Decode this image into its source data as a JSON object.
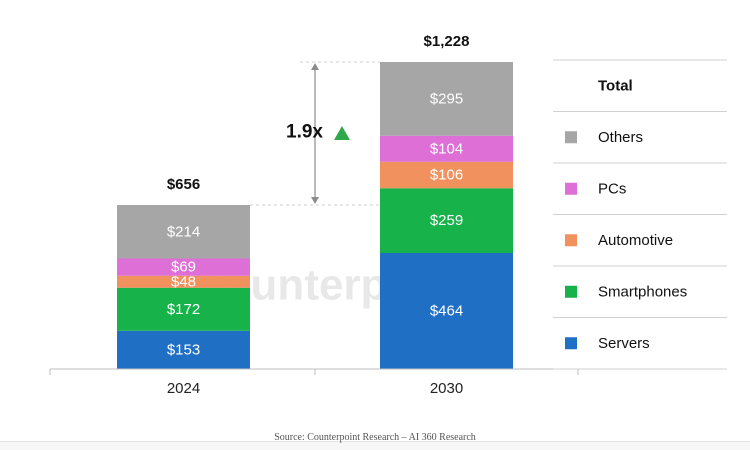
{
  "chart_data": {
    "type": "bar",
    "stacked": true,
    "categories": [
      "2024",
      "2030"
    ],
    "totals": [
      "$656",
      "$1,228"
    ],
    "series": [
      {
        "name": "Servers",
        "color": "#1f6fc5",
        "values": [
          153,
          464
        ],
        "labels": [
          "$153",
          "$464"
        ]
      },
      {
        "name": "Smartphones",
        "color": "#17b24a",
        "values": [
          172,
          259
        ],
        "labels": [
          "$172",
          "$259"
        ]
      },
      {
        "name": "Automotive",
        "color": "#f0915e",
        "values": [
          48,
          106
        ],
        "labels": [
          "$48",
          "$106"
        ]
      },
      {
        "name": "PCs",
        "color": "#dd6fd6",
        "values": [
          69,
          104
        ],
        "labels": [
          "$69",
          "$104"
        ]
      },
      {
        "name": "Others",
        "color": "#a6a6a6",
        "values": [
          214,
          295
        ],
        "labels": [
          "$214",
          "$295"
        ]
      }
    ],
    "legend_title": "Total",
    "legend_order": [
      "Others",
      "PCs",
      "Automotive",
      "Smartphones",
      "Servers"
    ],
    "legend_position": "right",
    "growth_annotation": "1.9x",
    "growth_arrow_color": "#2ea84a",
    "grid": false
  },
  "watermark": "Counterpoint",
  "source": "Source: Counterpoint Research – AI 360 Research"
}
